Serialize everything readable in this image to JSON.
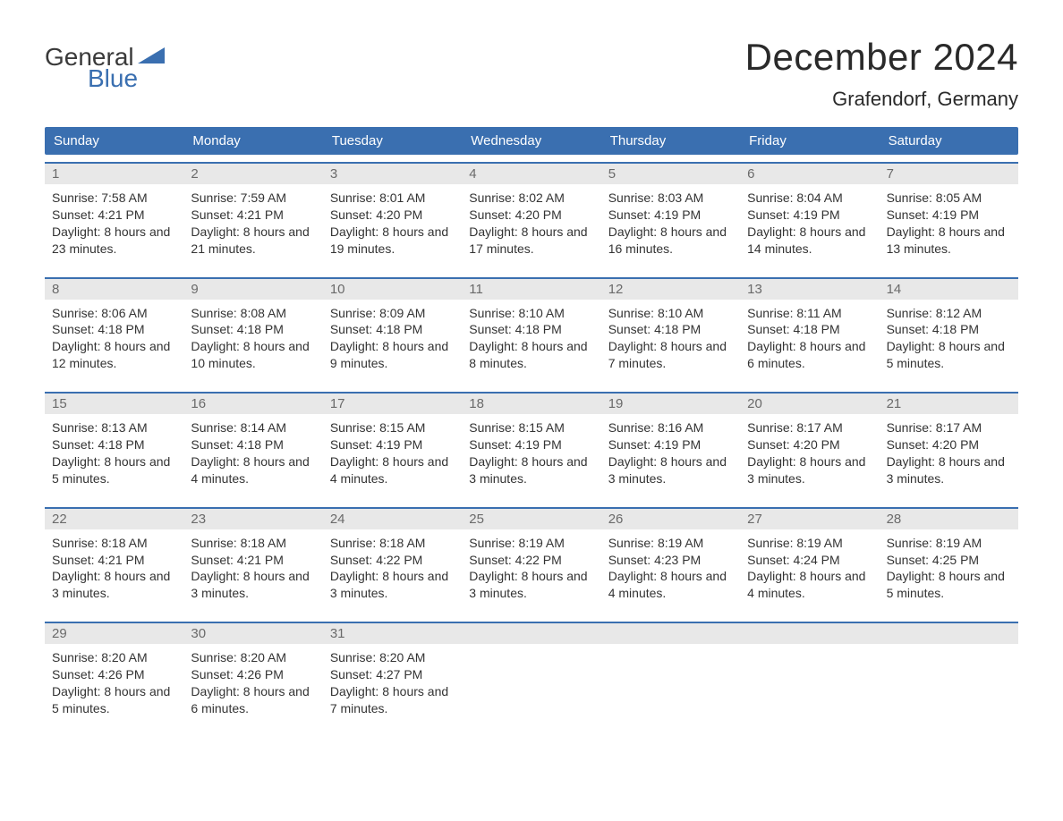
{
  "brand": {
    "line1": "General",
    "line2": "Blue"
  },
  "title": "December 2024",
  "location": "Grafendorf, Germany",
  "colors": {
    "accent": "#3a6fb0",
    "header_text": "#ffffff",
    "daynum_bg": "#e8e8e8",
    "daynum_text": "#6a6a6a",
    "body_text": "#333333",
    "page_bg": "#ffffff"
  },
  "dow": [
    "Sunday",
    "Monday",
    "Tuesday",
    "Wednesday",
    "Thursday",
    "Friday",
    "Saturday"
  ],
  "labels": {
    "sunrise": "Sunrise:",
    "sunset": "Sunset:",
    "daylight": "Daylight:"
  },
  "days": [
    {
      "n": 1,
      "sunrise": "7:58 AM",
      "sunset": "4:21 PM",
      "dl": "8 hours and 23 minutes."
    },
    {
      "n": 2,
      "sunrise": "7:59 AM",
      "sunset": "4:21 PM",
      "dl": "8 hours and 21 minutes."
    },
    {
      "n": 3,
      "sunrise": "8:01 AM",
      "sunset": "4:20 PM",
      "dl": "8 hours and 19 minutes."
    },
    {
      "n": 4,
      "sunrise": "8:02 AM",
      "sunset": "4:20 PM",
      "dl": "8 hours and 17 minutes."
    },
    {
      "n": 5,
      "sunrise": "8:03 AM",
      "sunset": "4:19 PM",
      "dl": "8 hours and 16 minutes."
    },
    {
      "n": 6,
      "sunrise": "8:04 AM",
      "sunset": "4:19 PM",
      "dl": "8 hours and 14 minutes."
    },
    {
      "n": 7,
      "sunrise": "8:05 AM",
      "sunset": "4:19 PM",
      "dl": "8 hours and 13 minutes."
    },
    {
      "n": 8,
      "sunrise": "8:06 AM",
      "sunset": "4:18 PM",
      "dl": "8 hours and 12 minutes."
    },
    {
      "n": 9,
      "sunrise": "8:08 AM",
      "sunset": "4:18 PM",
      "dl": "8 hours and 10 minutes."
    },
    {
      "n": 10,
      "sunrise": "8:09 AM",
      "sunset": "4:18 PM",
      "dl": "8 hours and 9 minutes."
    },
    {
      "n": 11,
      "sunrise": "8:10 AM",
      "sunset": "4:18 PM",
      "dl": "8 hours and 8 minutes."
    },
    {
      "n": 12,
      "sunrise": "8:10 AM",
      "sunset": "4:18 PM",
      "dl": "8 hours and 7 minutes."
    },
    {
      "n": 13,
      "sunrise": "8:11 AM",
      "sunset": "4:18 PM",
      "dl": "8 hours and 6 minutes."
    },
    {
      "n": 14,
      "sunrise": "8:12 AM",
      "sunset": "4:18 PM",
      "dl": "8 hours and 5 minutes."
    },
    {
      "n": 15,
      "sunrise": "8:13 AM",
      "sunset": "4:18 PM",
      "dl": "8 hours and 5 minutes."
    },
    {
      "n": 16,
      "sunrise": "8:14 AM",
      "sunset": "4:18 PM",
      "dl": "8 hours and 4 minutes."
    },
    {
      "n": 17,
      "sunrise": "8:15 AM",
      "sunset": "4:19 PM",
      "dl": "8 hours and 4 minutes."
    },
    {
      "n": 18,
      "sunrise": "8:15 AM",
      "sunset": "4:19 PM",
      "dl": "8 hours and 3 minutes."
    },
    {
      "n": 19,
      "sunrise": "8:16 AM",
      "sunset": "4:19 PM",
      "dl": "8 hours and 3 minutes."
    },
    {
      "n": 20,
      "sunrise": "8:17 AM",
      "sunset": "4:20 PM",
      "dl": "8 hours and 3 minutes."
    },
    {
      "n": 21,
      "sunrise": "8:17 AM",
      "sunset": "4:20 PM",
      "dl": "8 hours and 3 minutes."
    },
    {
      "n": 22,
      "sunrise": "8:18 AM",
      "sunset": "4:21 PM",
      "dl": "8 hours and 3 minutes."
    },
    {
      "n": 23,
      "sunrise": "8:18 AM",
      "sunset": "4:21 PM",
      "dl": "8 hours and 3 minutes."
    },
    {
      "n": 24,
      "sunrise": "8:18 AM",
      "sunset": "4:22 PM",
      "dl": "8 hours and 3 minutes."
    },
    {
      "n": 25,
      "sunrise": "8:19 AM",
      "sunset": "4:22 PM",
      "dl": "8 hours and 3 minutes."
    },
    {
      "n": 26,
      "sunrise": "8:19 AM",
      "sunset": "4:23 PM",
      "dl": "8 hours and 4 minutes."
    },
    {
      "n": 27,
      "sunrise": "8:19 AM",
      "sunset": "4:24 PM",
      "dl": "8 hours and 4 minutes."
    },
    {
      "n": 28,
      "sunrise": "8:19 AM",
      "sunset": "4:25 PM",
      "dl": "8 hours and 5 minutes."
    },
    {
      "n": 29,
      "sunrise": "8:20 AM",
      "sunset": "4:26 PM",
      "dl": "8 hours and 5 minutes."
    },
    {
      "n": 30,
      "sunrise": "8:20 AM",
      "sunset": "4:26 PM",
      "dl": "8 hours and 6 minutes."
    },
    {
      "n": 31,
      "sunrise": "8:20 AM",
      "sunset": "4:27 PM",
      "dl": "8 hours and 7 minutes."
    }
  ],
  "grid": {
    "start_dow": 0,
    "total_days": 31,
    "weeks": 5,
    "trailing_blanks": 4
  }
}
